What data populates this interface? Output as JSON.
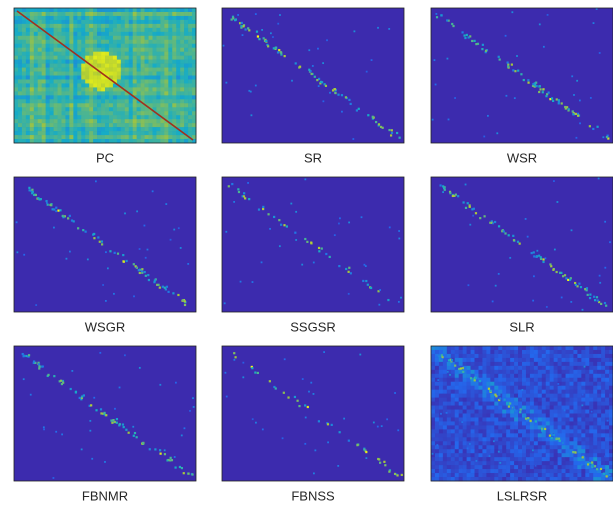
{
  "panels": [
    {
      "label": "PC"
    },
    {
      "label": "SR"
    },
    {
      "label": "WSR"
    },
    {
      "label": "WSGR"
    },
    {
      "label": "SSGSR"
    },
    {
      "label": "SLR"
    },
    {
      "label": "FBNMR"
    },
    {
      "label": "FBNSS"
    },
    {
      "label": "LSLRSR"
    }
  ]
}
